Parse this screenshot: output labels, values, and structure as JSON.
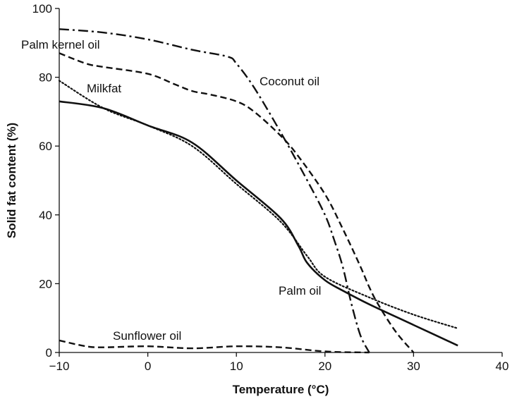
{
  "chart_data": {
    "type": "line",
    "title": "",
    "xlabel": "Temperature (°C)",
    "ylabel": "Solid fat content (%)",
    "xlim": [
      -10,
      40
    ],
    "ylim": [
      0,
      100
    ],
    "x_ticks": [
      "−10",
      "0",
      "10",
      "20",
      "30",
      "40"
    ],
    "y_ticks": [
      "0",
      "20",
      "40",
      "60",
      "80",
      "100"
    ],
    "grid": false,
    "legend": "none",
    "series": [
      {
        "name": "Coconut oil",
        "style": "dash-dot",
        "x": [
          -10,
          -5,
          0,
          5,
          9,
          10,
          12,
          15,
          18,
          20,
          21,
          22,
          23,
          24,
          25
        ],
        "y": [
          94,
          93,
          91,
          88,
          86,
          84,
          77,
          64,
          50,
          40,
          33,
          25,
          14,
          5,
          0
        ]
      },
      {
        "name": "Palm kernel oil",
        "style": "dashed",
        "x": [
          -10,
          -7,
          -5,
          0,
          3,
          5,
          7,
          10,
          12,
          15,
          17,
          20,
          22,
          24,
          25,
          26,
          28,
          30
        ],
        "y": [
          87,
          84,
          83,
          81,
          78,
          76,
          75,
          73,
          70,
          63,
          57,
          46,
          36,
          25,
          19,
          14,
          6,
          0
        ]
      },
      {
        "name": "Milkfat",
        "style": "dotted",
        "x": [
          -10,
          -5,
          0,
          5,
          10,
          15,
          18,
          20,
          25,
          30,
          35
        ],
        "y": [
          79,
          71,
          66,
          60,
          49,
          38,
          28,
          22,
          16,
          11,
          7
        ]
      },
      {
        "name": "Palm oil",
        "style": "solid",
        "x": [
          -10,
          -5,
          0,
          5,
          10,
          15,
          17,
          18,
          20,
          22,
          25,
          30,
          35
        ],
        "y": [
          73,
          71,
          66,
          61,
          50,
          39,
          31,
          26,
          21,
          18,
          14,
          8,
          2
        ]
      },
      {
        "name": "Sunflower oil",
        "style": "dashed",
        "x": [
          -10,
          -7,
          -5,
          0,
          5,
          10,
          15,
          20,
          25
        ],
        "y": [
          3.5,
          1.8,
          1.5,
          1.8,
          1.2,
          1.8,
          1.5,
          0.3,
          0
        ]
      }
    ]
  }
}
